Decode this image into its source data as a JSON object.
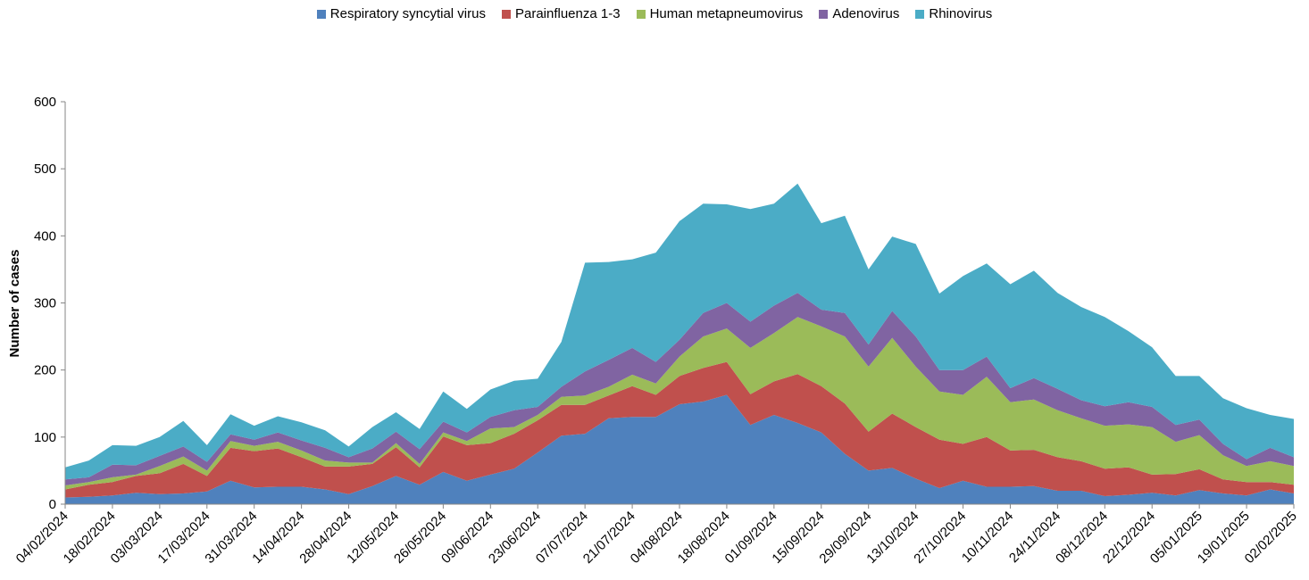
{
  "chart_data": {
    "type": "stacked-area",
    "y_label": "Number of cases",
    "categories": [
      "04/02/2024",
      null,
      "18/02/2024",
      null,
      "03/03/2024",
      null,
      "17/03/2024",
      null,
      "31/03/2024",
      null,
      "14/04/2024",
      null,
      "28/04/2024",
      null,
      "12/05/2024",
      null,
      "26/05/2024",
      null,
      "09/06/2024",
      null,
      "23/06/2024",
      null,
      "07/07/2024",
      null,
      "21/07/2024",
      null,
      "04/08/2024",
      null,
      "18/08/2024",
      null,
      "01/09/2024",
      null,
      "15/09/2024",
      null,
      "29/09/2024",
      null,
      "13/10/2024",
      null,
      "27/10/2024",
      null,
      "10/11/2024",
      null,
      "24/11/2024",
      null,
      "08/12/2024",
      null,
      "22/12/2024",
      null,
      "05/01/2025",
      null,
      "19/01/2025",
      null,
      "02/02/2025"
    ],
    "series": [
      {
        "name": "Respiratory syncytial virus",
        "color": "#4f81bd",
        "values": [
          10,
          11,
          13,
          17,
          15,
          16,
          19,
          35,
          25,
          26,
          26,
          22,
          15,
          27,
          42,
          29,
          48,
          35,
          44,
          53,
          77,
          102,
          105,
          128,
          130,
          130,
          149,
          153,
          163,
          118,
          133,
          121,
          107,
          75,
          50,
          54,
          38,
          24,
          35,
          26,
          26,
          27,
          20,
          20,
          12,
          14,
          17,
          13,
          21,
          16,
          13,
          22,
          16
        ]
      },
      {
        "name": "Parainfluenza 1-3",
        "color": "#c0504d",
        "values": [
          12,
          18,
          20,
          25,
          31,
          44,
          23,
          49,
          54,
          57,
          44,
          34,
          41,
          33,
          43,
          26,
          53,
          53,
          47,
          52,
          48,
          46,
          43,
          34,
          46,
          33,
          42,
          50,
          49,
          46,
          50,
          73,
          69,
          75,
          58,
          81,
          77,
          72,
          55,
          74,
          54,
          54,
          50,
          44,
          41,
          41,
          27,
          32,
          31,
          21,
          20,
          11,
          13
        ]
      },
      {
        "name": "Human metapneumovirus",
        "color": "#9bbb59",
        "values": [
          6,
          4,
          7,
          2,
          11,
          11,
          8,
          10,
          8,
          10,
          10,
          9,
          6,
          2,
          6,
          5,
          6,
          6,
          22,
          10,
          8,
          12,
          14,
          13,
          17,
          17,
          29,
          47,
          50,
          69,
          72,
          85,
          89,
          100,
          97,
          113,
          90,
          72,
          73,
          90,
          72,
          75,
          70,
          64,
          64,
          64,
          71,
          48,
          51,
          36,
          24,
          31,
          28
        ]
      },
      {
        "name": "Adenovirus",
        "color": "#8064a2",
        "values": [
          9,
          7,
          19,
          14,
          15,
          15,
          13,
          10,
          9,
          14,
          15,
          19,
          8,
          21,
          17,
          22,
          16,
          13,
          17,
          25,
          12,
          15,
          36,
          40,
          40,
          32,
          25,
          35,
          38,
          39,
          41,
          36,
          25,
          35,
          33,
          40,
          45,
          32,
          37,
          30,
          21,
          32,
          32,
          27,
          29,
          33,
          30,
          25,
          23,
          17,
          10,
          20,
          13
        ]
      },
      {
        "name": "Rhinovirus",
        "color": "#4bacc6",
        "values": [
          18,
          25,
          29,
          29,
          28,
          38,
          25,
          30,
          21,
          24,
          27,
          26,
          16,
          32,
          29,
          30,
          45,
          35,
          41,
          44,
          42,
          67,
          162,
          146,
          132,
          163,
          177,
          163,
          147,
          168,
          152,
          163,
          129,
          145,
          112,
          111,
          138,
          114,
          140,
          139,
          155,
          160,
          143,
          139,
          133,
          106,
          89,
          73,
          65,
          68,
          76,
          49,
          57
        ]
      }
    ],
    "ylim": [
      0,
      600
    ],
    "yticks": [
      0,
      100,
      200,
      300,
      400,
      500,
      600
    ],
    "grid": false
  }
}
